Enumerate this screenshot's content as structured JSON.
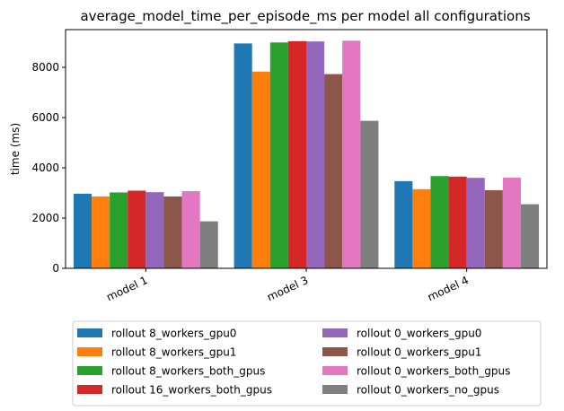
{
  "chart_data": {
    "type": "bar",
    "title": "average_model_time_per_episode_ms per model all configurations",
    "xlabel": "",
    "ylabel": "time (ms)",
    "ylim": [
      0,
      9500
    ],
    "yticks": [
      0,
      2000,
      4000,
      6000,
      8000
    ],
    "categories": [
      "model 1",
      "model 3",
      "model 4"
    ],
    "legend_position": "bottom-center, below plot, 2 columns",
    "series": [
      {
        "name": "rollout 8_workers_gpu0",
        "color": "#1f77b4",
        "values": [
          2970,
          8950,
          3470
        ]
      },
      {
        "name": "rollout 8_workers_gpu1",
        "color": "#ff7f0e",
        "values": [
          2860,
          7830,
          3150
        ]
      },
      {
        "name": "rollout 8_workers_both_gpus",
        "color": "#2ca02c",
        "values": [
          3020,
          8990,
          3670
        ]
      },
      {
        "name": "rollout 16_workers_both_gpus",
        "color": "#d62728",
        "values": [
          3090,
          9040,
          3650
        ]
      },
      {
        "name": "rollout 0_workers_gpu0",
        "color": "#9467bd",
        "values": [
          3030,
          9030,
          3600
        ]
      },
      {
        "name": "rollout 0_workers_gpu1",
        "color": "#8c564b",
        "values": [
          2860,
          7730,
          3110
        ]
      },
      {
        "name": "rollout 0_workers_both_gpus",
        "color": "#e377c2",
        "values": [
          3070,
          9060,
          3610
        ]
      },
      {
        "name": "rollout 0_workers_no_gpus",
        "color": "#7f7f7f",
        "values": [
          1870,
          5870,
          2550
        ]
      }
    ]
  }
}
